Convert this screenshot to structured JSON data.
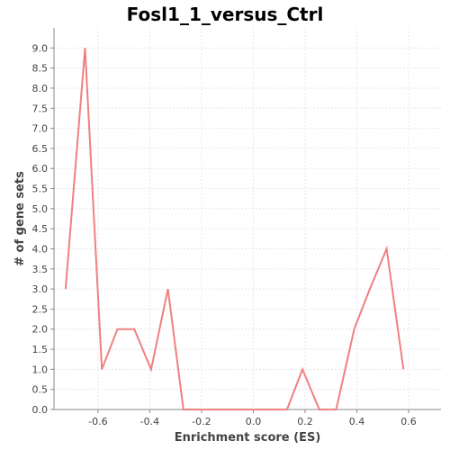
{
  "chart_data": {
    "type": "line",
    "title": "Fosl1_1_versus_Ctrl",
    "xlabel": "Enrichment score (ES)",
    "ylabel": "# of gene sets",
    "xlim": [
      -0.77,
      0.725
    ],
    "ylim": [
      0,
      9.5
    ],
    "x_ticks": [
      -0.6,
      -0.4,
      -0.2,
      0.0,
      0.2,
      0.4,
      0.6
    ],
    "x_tick_labels": [
      "-0.6",
      "-0.4",
      "-0.2",
      "0.0",
      "0.2",
      "0.4",
      "0.6"
    ],
    "y_ticks": [
      0,
      0.5,
      1,
      1.5,
      2,
      2.5,
      3,
      3.5,
      4,
      4.5,
      5,
      5.5,
      6,
      6.5,
      7,
      7.5,
      8,
      8.5,
      9
    ],
    "y_tick_labels": [
      "0.0",
      "0.5",
      "1.0",
      "1.5",
      "2.0",
      "2.5",
      "3.0",
      "3.5",
      "4.0",
      "4.5",
      "5.0",
      "5.5",
      "6.0",
      "6.5",
      "7.0",
      "7.5",
      "8.0",
      "8.5",
      "9.0"
    ],
    "grid": true,
    "line_color": "#f08080",
    "series": [
      {
        "x": [
          -0.725,
          -0.65,
          -0.585,
          -0.525,
          -0.46,
          -0.395,
          -0.33,
          -0.27,
          -0.2,
          -0.135,
          -0.07,
          0.0,
          0.06,
          0.13,
          0.19,
          0.255,
          0.32,
          0.39,
          0.45,
          0.515,
          0.58,
          0.645,
          0.71
        ],
        "y": [
          3,
          9,
          1,
          2,
          2,
          1,
          3,
          0,
          0,
          0,
          0,
          0,
          0,
          0,
          1,
          0,
          0,
          2,
          3,
          4,
          1,
          null,
          null
        ]
      }
    ]
  }
}
